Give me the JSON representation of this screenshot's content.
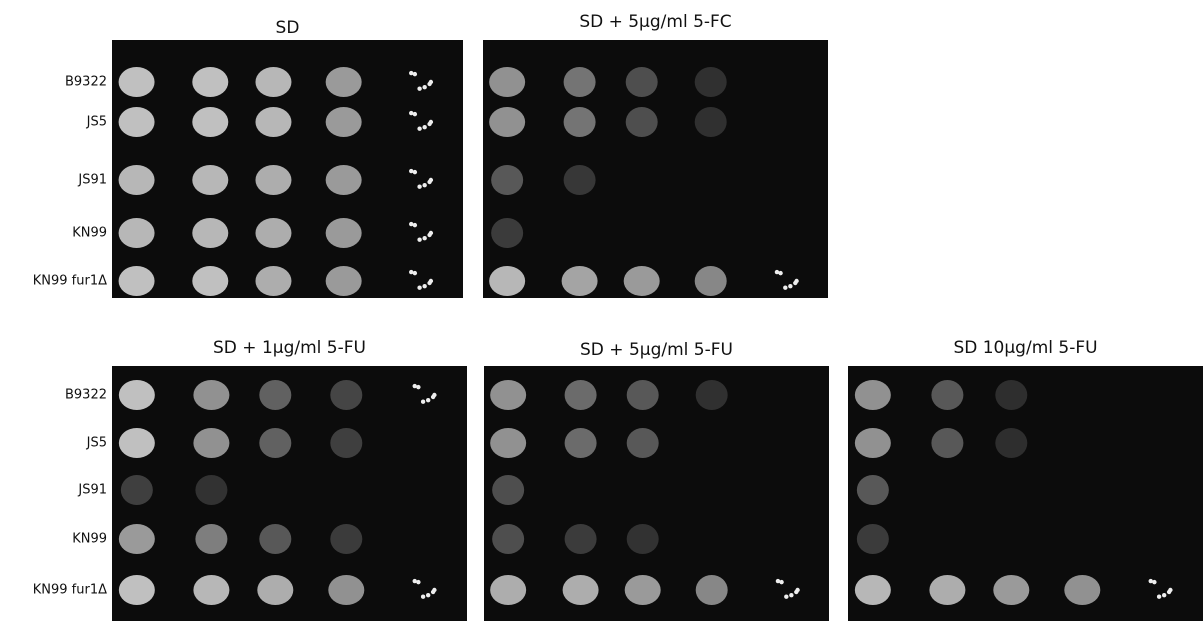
{
  "panels": [
    {
      "title": "SD",
      "rows": [
        "B9322",
        "JS5",
        "JS91",
        "KN99",
        "KN99 fur1Δ"
      ]
    },
    {
      "title": "SD + 5μg/ml 5-FC"
    },
    {
      "title": "SD + 1μg/ml 5-FU",
      "rows": [
        "B9322",
        "JS5",
        "JS91",
        "KN99",
        "KN99 fur1Δ"
      ]
    },
    {
      "title": "SD + 5μg/ml 5-FU"
    },
    {
      "title": "SD 10μg/ml 5-FU"
    }
  ]
}
